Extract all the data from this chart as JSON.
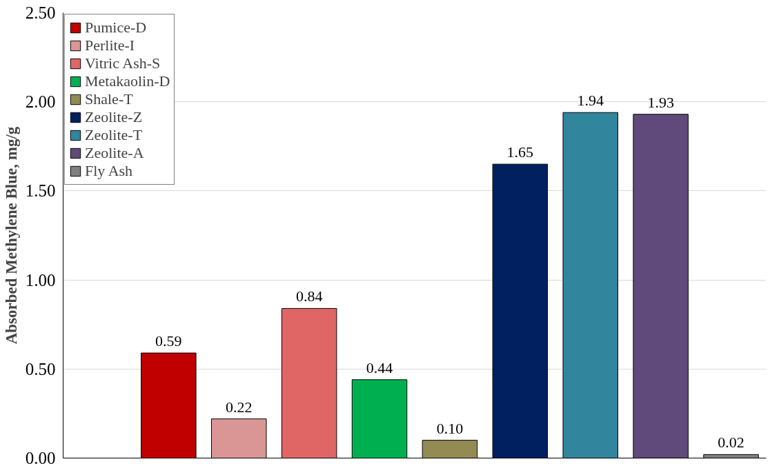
{
  "chart_data": {
    "type": "bar",
    "ylabel": "Absorbed Methylene Blue, mg/g",
    "categories": [
      null,
      null,
      null,
      null,
      null,
      null,
      null,
      null,
      null,
      null
    ],
    "series": [
      {
        "name": "Pumice-D",
        "color": "#c00000",
        "values": [
          null,
          0.59,
          null,
          null,
          null,
          null,
          null,
          null,
          null,
          null
        ],
        "value_labels": [
          null,
          "0.59",
          null,
          null,
          null,
          null,
          null,
          null,
          null,
          null
        ]
      },
      {
        "name": "Perlite-I",
        "color": "#da9694",
        "values": [
          null,
          null,
          0.22,
          null,
          null,
          null,
          null,
          null,
          null,
          null
        ],
        "value_labels": [
          null,
          null,
          "0.22",
          null,
          null,
          null,
          null,
          null,
          null,
          null
        ]
      },
      {
        "name": "Vitric Ash-S",
        "color": "#e06666",
        "values": [
          null,
          null,
          null,
          0.84,
          null,
          null,
          null,
          null,
          null,
          null
        ],
        "value_labels": [
          null,
          null,
          null,
          "0.84",
          null,
          null,
          null,
          null,
          null,
          null
        ]
      },
      {
        "name": "Metakaolin-D",
        "color": "#00b050",
        "values": [
          null,
          null,
          null,
          null,
          0.44,
          null,
          null,
          null,
          null,
          null
        ],
        "value_labels": [
          null,
          null,
          null,
          null,
          "0.44",
          null,
          null,
          null,
          null,
          null
        ]
      },
      {
        "name": "Shale-T",
        "color": "#948a54",
        "values": [
          null,
          null,
          null,
          null,
          null,
          0.1,
          null,
          null,
          null,
          null
        ],
        "value_labels": [
          null,
          null,
          null,
          null,
          null,
          "0.10",
          null,
          null,
          null,
          null
        ]
      },
      {
        "name": "Zeolite-Z",
        "color": "#002060",
        "values": [
          null,
          null,
          null,
          null,
          null,
          null,
          1.65,
          null,
          null,
          null
        ],
        "value_labels": [
          null,
          null,
          null,
          null,
          null,
          null,
          "1.65",
          null,
          null,
          null
        ]
      },
      {
        "name": "Zeolite-T",
        "color": "#31859c",
        "values": [
          null,
          null,
          null,
          null,
          null,
          null,
          null,
          1.94,
          null,
          null
        ],
        "value_labels": [
          null,
          null,
          null,
          null,
          null,
          null,
          null,
          "1.94",
          null,
          null
        ]
      },
      {
        "name": "Zeolite-A",
        "color": "#604a7b",
        "values": [
          null,
          null,
          null,
          null,
          null,
          null,
          null,
          null,
          1.93,
          null
        ],
        "value_labels": [
          null,
          null,
          null,
          null,
          null,
          null,
          null,
          null,
          "1.93",
          null
        ]
      },
      {
        "name": "Fly Ash",
        "color": "#808080",
        "values": [
          null,
          null,
          null,
          null,
          null,
          null,
          null,
          null,
          null,
          0.02
        ],
        "value_labels": [
          null,
          null,
          null,
          null,
          null,
          null,
          null,
          null,
          null,
          "0.02"
        ]
      }
    ],
    "ylim": [
      0,
      2.5
    ],
    "yticks": [
      {
        "value": 0,
        "label": "0.00"
      },
      {
        "value": 0.5,
        "label": "0.50"
      },
      {
        "value": 1,
        "label": "1.00"
      },
      {
        "value": 1.5,
        "label": "1.50"
      },
      {
        "value": 2,
        "label": "2.00"
      },
      {
        "value": 2.5,
        "label": "2.50"
      }
    ],
    "grid": "y",
    "legend": "top left",
    "tick_labels": "y"
  }
}
